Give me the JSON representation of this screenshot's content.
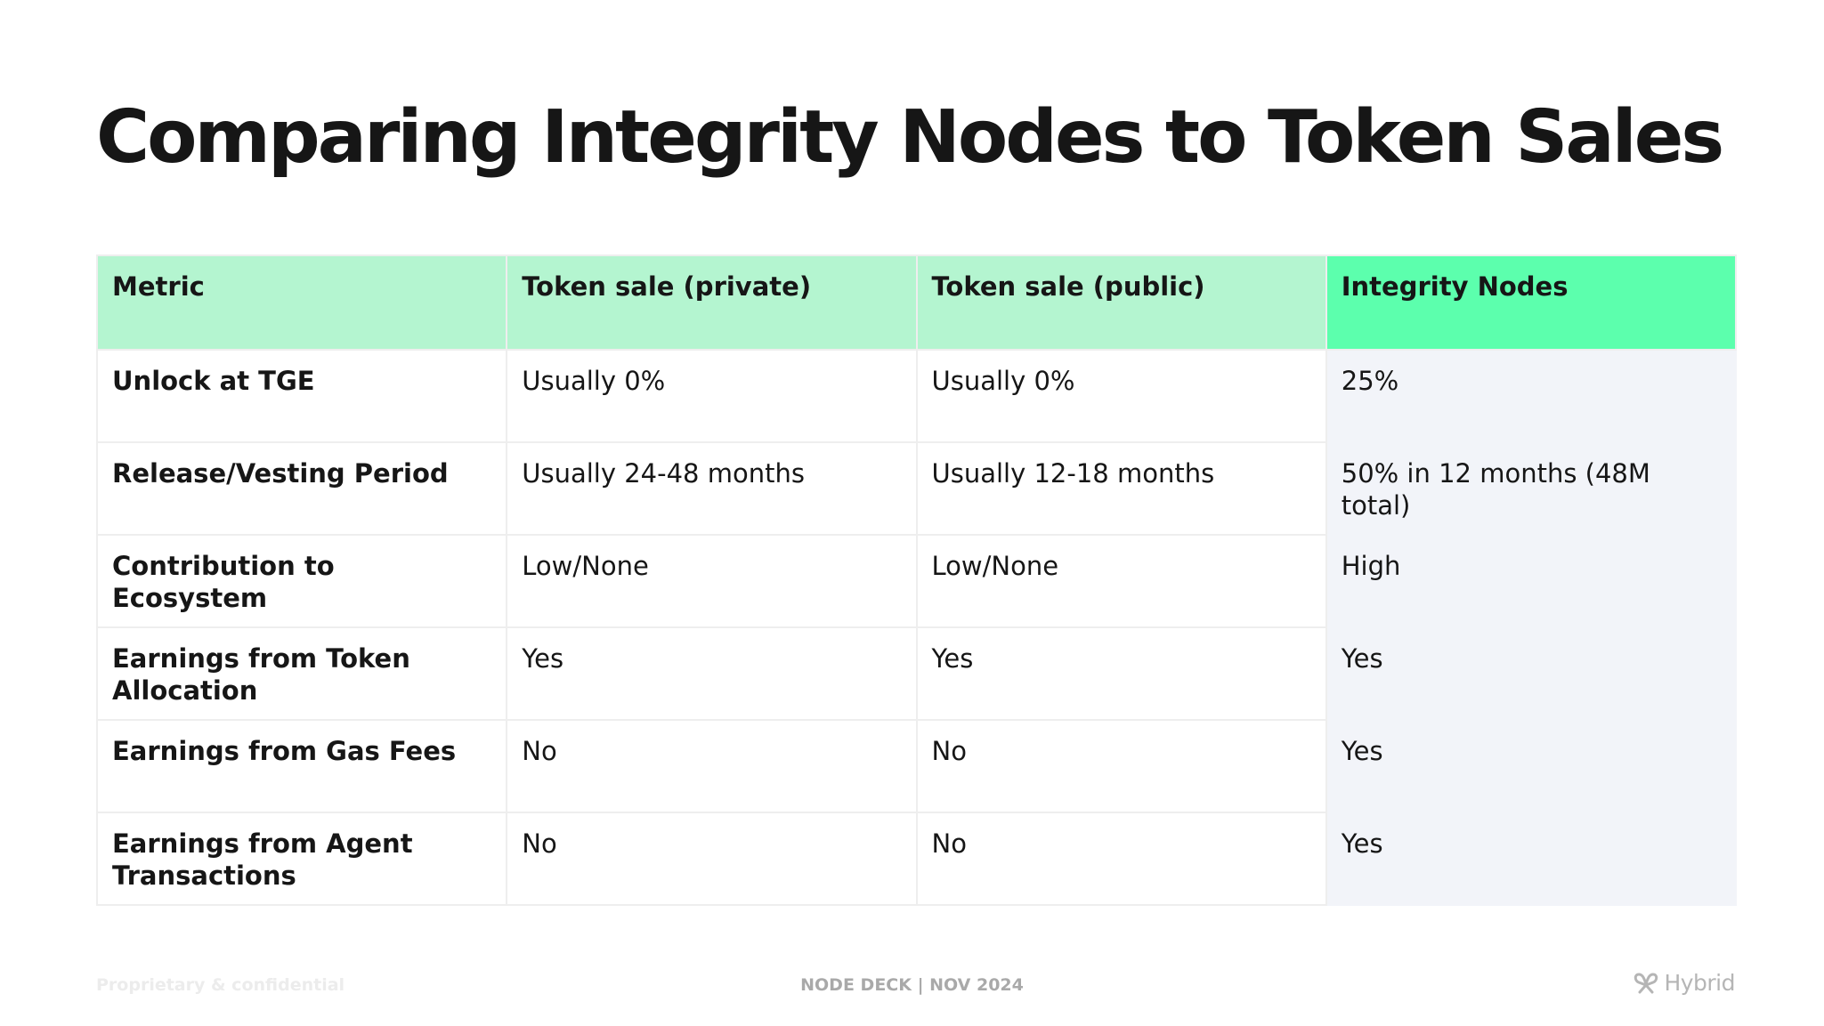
{
  "title": "Comparing Integrity Nodes to Token Sales",
  "table": {
    "headers": [
      "Metric",
      "Token sale (private)",
      "Token sale (public)",
      "Integrity Nodes"
    ],
    "rows": [
      [
        "Unlock at TGE",
        "Usually 0%",
        "Usually 0%",
        "25%"
      ],
      [
        "Release/Vesting Period",
        "Usually 24-48 months",
        "Usually 12-18 months",
        "50% in 12 months (48M total)"
      ],
      [
        "Contribution to Ecosystem",
        "Low/None",
        "Low/None",
        "High"
      ],
      [
        "Earnings from Token Allocation",
        "Yes",
        "Yes",
        "Yes"
      ],
      [
        "Earnings from Gas Fees",
        "No",
        "No",
        "Yes"
      ],
      [
        "Earnings from Agent Transactions",
        "No",
        "No",
        "Yes"
      ]
    ]
  },
  "footer": {
    "left": "Proprietary & confidential",
    "center": "NODE DECK | NOV 2024",
    "logo_text": "Hybrid",
    "logo_icon": "hybrid-logo-icon"
  },
  "colors": {
    "header_bg": "#b4f5d0",
    "highlight_header_bg": "#5cffad",
    "highlight_column_bg": "#f2f4f9",
    "text": "#161616"
  }
}
